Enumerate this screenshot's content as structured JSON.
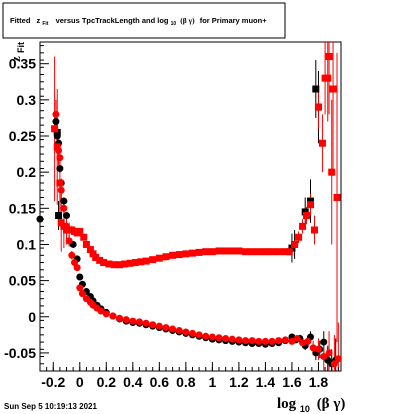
{
  "title": {
    "prefix": "Fitted",
    "z_main": "z",
    "z_sub": "Fit",
    "mid": "versus TpcTrackLength and log",
    "log_sub": "10",
    "beta_gamma": "(β γ)",
    "suffix": "for Primary muon+"
  },
  "footer": {
    "timestamp": "Sun Sep  5 10:19:13 2021"
  },
  "chart_data": {
    "type": "scatter",
    "title": "Fitted z_Fit versus TpcTrackLength and log_10 (β γ) for Primary muon+",
    "xlabel": {
      "main": "log",
      "sub": "10",
      "rest": "(β γ)"
    },
    "ylabel": {
      "main": "z",
      "sub": "Fit"
    },
    "xlim": [
      -0.3,
      1.97
    ],
    "ylim": [
      -0.075,
      0.38
    ],
    "x_ticks": [
      {
        "value": -0.2,
        "label": "-0.2"
      },
      {
        "value": 0,
        "label": "0"
      },
      {
        "value": 0.2,
        "label": "0.2"
      },
      {
        "value": 0.4,
        "label": "0.4"
      },
      {
        "value": 0.6,
        "label": "0.6"
      },
      {
        "value": 0.8,
        "label": "0.8"
      },
      {
        "value": 1.0,
        "label": "1"
      },
      {
        "value": 1.2,
        "label": "1.2"
      },
      {
        "value": 1.4,
        "label": "1.4"
      },
      {
        "value": 1.6,
        "label": "1.6"
      },
      {
        "value": 1.8,
        "label": "1.8"
      }
    ],
    "y_ticks": [
      {
        "value": -0.05,
        "label": "-0.05"
      },
      {
        "value": 0,
        "label": "0"
      },
      {
        "value": 0.05,
        "label": "0.05"
      },
      {
        "value": 0.1,
        "label": "0.1"
      },
      {
        "value": 0.15,
        "label": "0.15"
      },
      {
        "value": 0.2,
        "label": "0.2"
      },
      {
        "value": 0.25,
        "label": "0.25"
      },
      {
        "value": 0.3,
        "label": "0.3"
      },
      {
        "value": 0.35,
        "label": "0.35"
      }
    ],
    "grid": false,
    "series": [
      {
        "color": "#000000",
        "marker": "circle",
        "points": [
          [
            -0.3,
            0.135,
            0.006
          ],
          [
            -0.18,
            0.27,
            0.008
          ],
          [
            -0.17,
            0.25,
            0.008
          ],
          [
            -0.16,
            0.24,
            0.007
          ],
          [
            -0.15,
            0.205,
            0.006
          ],
          [
            -0.14,
            0.185,
            0.006
          ],
          [
            -0.12,
            0.16,
            0.005
          ],
          [
            -0.1,
            0.14,
            0.004
          ],
          [
            -0.08,
            0.12,
            0.003
          ],
          [
            -0.05,
            0.1,
            0.003
          ],
          [
            -0.02,
            0.08,
            0.002
          ],
          [
            0.0,
            0.055,
            0.002
          ],
          [
            0.02,
            0.045,
            0.002
          ],
          [
            0.05,
            0.035,
            0.001
          ],
          [
            0.08,
            0.028,
            0.001
          ],
          [
            0.1,
            0.022,
            0.001
          ],
          [
            0.13,
            0.016,
            0.001
          ],
          [
            0.16,
            0.011,
            0.001
          ],
          [
            0.2,
            0.006,
            0.001
          ],
          [
            0.25,
            0.001,
            0.001
          ],
          [
            0.3,
            -0.003,
            0.001
          ],
          [
            0.35,
            -0.006,
            0.001
          ],
          [
            0.4,
            -0.008,
            0.001
          ],
          [
            0.45,
            -0.009,
            0.001
          ],
          [
            0.5,
            -0.011,
            0.001
          ],
          [
            0.55,
            -0.013,
            0.001
          ],
          [
            0.6,
            -0.015,
            0.001
          ],
          [
            0.65,
            -0.017,
            0.001
          ],
          [
            0.7,
            -0.019,
            0.001
          ],
          [
            0.75,
            -0.021,
            0.001
          ],
          [
            0.8,
            -0.023,
            0.001
          ],
          [
            0.85,
            -0.025,
            0.001
          ],
          [
            0.9,
            -0.027,
            0.001
          ],
          [
            0.95,
            -0.029,
            0.001
          ],
          [
            1.0,
            -0.031,
            0.001
          ],
          [
            1.05,
            -0.032,
            0.001
          ],
          [
            1.1,
            -0.033,
            0.001
          ],
          [
            1.15,
            -0.034,
            0.001
          ],
          [
            1.2,
            -0.035,
            0.001
          ],
          [
            1.25,
            -0.036,
            0.001
          ],
          [
            1.3,
            -0.037,
            0.001
          ],
          [
            1.35,
            -0.037,
            0.001
          ],
          [
            1.4,
            -0.038,
            0.001
          ],
          [
            1.45,
            -0.037,
            0.002
          ],
          [
            1.5,
            -0.036,
            0.002
          ],
          [
            1.55,
            -0.033,
            0.002
          ],
          [
            1.6,
            -0.028,
            0.003
          ],
          [
            1.63,
            -0.032,
            0.004
          ],
          [
            1.66,
            -0.03,
            0.005
          ],
          [
            1.7,
            -0.04,
            0.006
          ],
          [
            1.74,
            -0.028,
            0.008
          ],
          [
            1.78,
            -0.05,
            0.01
          ],
          [
            1.81,
            -0.045,
            0.012
          ],
          [
            1.84,
            -0.035,
            0.015
          ],
          [
            1.87,
            -0.06,
            0.02
          ],
          [
            1.9,
            -0.065,
            0.02
          ],
          [
            1.93,
            -0.06,
            0.03
          ]
        ]
      },
      {
        "color": "#ff0000",
        "marker": "circle",
        "points": [
          [
            -0.18,
            0.28,
            0.02
          ],
          [
            -0.17,
            0.255,
            0.02
          ],
          [
            -0.16,
            0.23,
            0.02
          ],
          [
            -0.15,
            0.22,
            0.018
          ],
          [
            -0.14,
            0.175,
            0.015
          ],
          [
            -0.12,
            0.15,
            0.012
          ],
          [
            -0.1,
            0.125,
            0.01
          ],
          [
            -0.08,
            0.105,
            0.008
          ],
          [
            -0.06,
            0.085,
            0.006
          ],
          [
            -0.04,
            0.075,
            0.005
          ],
          [
            -0.02,
            0.068,
            0.004
          ],
          [
            0.0,
            0.04,
            0.003
          ],
          [
            0.02,
            0.032,
            0.002
          ],
          [
            0.05,
            0.025,
            0.002
          ],
          [
            0.08,
            0.02,
            0.002
          ],
          [
            0.1,
            0.016,
            0.001
          ],
          [
            0.13,
            0.012,
            0.001
          ],
          [
            0.16,
            0.008,
            0.001
          ],
          [
            0.2,
            0.004,
            0.001
          ],
          [
            0.25,
            0.001,
            0.001
          ],
          [
            0.3,
            -0.002,
            0.001
          ],
          [
            0.35,
            -0.004,
            0.001
          ],
          [
            0.4,
            -0.006,
            0.001
          ],
          [
            0.45,
            -0.007,
            0.001
          ],
          [
            0.5,
            -0.009,
            0.001
          ],
          [
            0.55,
            -0.011,
            0.001
          ],
          [
            0.6,
            -0.013,
            0.001
          ],
          [
            0.65,
            -0.015,
            0.001
          ],
          [
            0.7,
            -0.017,
            0.001
          ],
          [
            0.75,
            -0.019,
            0.001
          ],
          [
            0.8,
            -0.021,
            0.001
          ],
          [
            0.85,
            -0.023,
            0.001
          ],
          [
            0.9,
            -0.025,
            0.001
          ],
          [
            0.95,
            -0.027,
            0.001
          ],
          [
            1.0,
            -0.028,
            0.001
          ],
          [
            1.05,
            -0.029,
            0.001
          ],
          [
            1.1,
            -0.03,
            0.001
          ],
          [
            1.15,
            -0.031,
            0.001
          ],
          [
            1.2,
            -0.032,
            0.001
          ],
          [
            1.25,
            -0.033,
            0.001
          ],
          [
            1.3,
            -0.033,
            0.001
          ],
          [
            1.35,
            -0.034,
            0.001
          ],
          [
            1.4,
            -0.034,
            0.001
          ],
          [
            1.45,
            -0.034,
            0.002
          ],
          [
            1.5,
            -0.033,
            0.002
          ],
          [
            1.55,
            -0.032,
            0.003
          ],
          [
            1.6,
            -0.034,
            0.003
          ],
          [
            1.64,
            -0.03,
            0.004
          ],
          [
            1.68,
            -0.036,
            0.006
          ],
          [
            1.72,
            -0.034,
            0.008
          ],
          [
            1.76,
            -0.043,
            0.01
          ],
          [
            1.8,
            -0.045,
            0.015
          ],
          [
            1.84,
            -0.055,
            0.02
          ],
          [
            1.88,
            -0.05,
            0.03
          ],
          [
            1.92,
            -0.065,
            0.04
          ],
          [
            1.95,
            -0.058,
            0.05
          ]
        ]
      },
      {
        "color": "#000000",
        "marker": "square",
        "points": [
          [
            -0.17,
            0.255,
            0.01
          ],
          [
            -0.16,
            0.14,
            0.02
          ],
          [
            1.6,
            0.095,
            0.02
          ],
          [
            1.62,
            0.1,
            0.02
          ],
          [
            1.7,
            0.145,
            0.02
          ],
          [
            1.74,
            0.16,
            0.03
          ],
          [
            1.78,
            0.315,
            0.04
          ],
          [
            1.8,
            0.29,
            0.05
          ]
        ]
      },
      {
        "color": "#ff0000",
        "marker": "square",
        "points": [
          [
            -0.19,
            0.26,
            0.1
          ],
          [
            -0.17,
            0.235,
            0.08
          ],
          [
            -0.15,
            0.185,
            0.06
          ],
          [
            -0.14,
            0.13,
            0.04
          ],
          [
            -0.12,
            0.125,
            0.03
          ],
          [
            -0.1,
            0.12,
            0.02
          ],
          [
            -0.08,
            0.12,
            0.01
          ],
          [
            -0.06,
            0.12,
            0.006
          ],
          [
            -0.04,
            0.118,
            0.005
          ],
          [
            -0.02,
            0.116,
            0.004
          ],
          [
            0.0,
            0.118,
            0.003
          ],
          [
            0.03,
            0.11,
            0.003
          ],
          [
            0.05,
            0.1,
            0.002
          ],
          [
            0.08,
            0.093,
            0.002
          ],
          [
            0.1,
            0.087,
            0.002
          ],
          [
            0.12,
            0.082,
            0.002
          ],
          [
            0.15,
            0.078,
            0.002
          ],
          [
            0.18,
            0.075,
            0.002
          ],
          [
            0.22,
            0.073,
            0.002
          ],
          [
            0.26,
            0.072,
            0.002
          ],
          [
            0.3,
            0.072,
            0.002
          ],
          [
            0.34,
            0.073,
            0.002
          ],
          [
            0.38,
            0.074,
            0.002
          ],
          [
            0.42,
            0.075,
            0.002
          ],
          [
            0.46,
            0.076,
            0.002
          ],
          [
            0.5,
            0.077,
            0.002
          ],
          [
            0.55,
            0.079,
            0.002
          ],
          [
            0.6,
            0.081,
            0.002
          ],
          [
            0.65,
            0.083,
            0.002
          ],
          [
            0.7,
            0.085,
            0.002
          ],
          [
            0.75,
            0.086,
            0.002
          ],
          [
            0.8,
            0.087,
            0.002
          ],
          [
            0.85,
            0.088,
            0.002
          ],
          [
            0.9,
            0.089,
            0.002
          ],
          [
            0.95,
            0.09,
            0.002
          ],
          [
            1.0,
            0.09,
            0.002
          ],
          [
            1.05,
            0.091,
            0.002
          ],
          [
            1.1,
            0.091,
            0.002
          ],
          [
            1.15,
            0.091,
            0.002
          ],
          [
            1.2,
            0.091,
            0.002
          ],
          [
            1.25,
            0.09,
            0.002
          ],
          [
            1.3,
            0.09,
            0.002
          ],
          [
            1.35,
            0.09,
            0.002
          ],
          [
            1.4,
            0.09,
            0.003
          ],
          [
            1.45,
            0.09,
            0.003
          ],
          [
            1.5,
            0.09,
            0.003
          ],
          [
            1.55,
            0.09,
            0.004
          ],
          [
            1.58,
            0.09,
            0.005
          ],
          [
            1.62,
            0.1,
            0.006
          ],
          [
            1.65,
            0.11,
            0.008
          ],
          [
            1.68,
            0.125,
            0.01
          ],
          [
            1.71,
            0.14,
            0.012
          ],
          [
            1.74,
            0.155,
            0.015
          ],
          [
            1.77,
            0.12,
            0.02
          ],
          [
            1.8,
            0.29,
            0.03
          ],
          [
            1.83,
            0.24,
            0.04
          ],
          [
            1.85,
            0.33,
            0.05
          ],
          [
            1.87,
            0.33,
            0.06
          ],
          [
            1.88,
            0.36,
            0.08
          ],
          [
            1.9,
            0.2,
            0.1
          ],
          [
            1.91,
            0.315,
            0.12
          ],
          [
            1.94,
            0.165,
            0.2
          ]
        ]
      }
    ]
  }
}
